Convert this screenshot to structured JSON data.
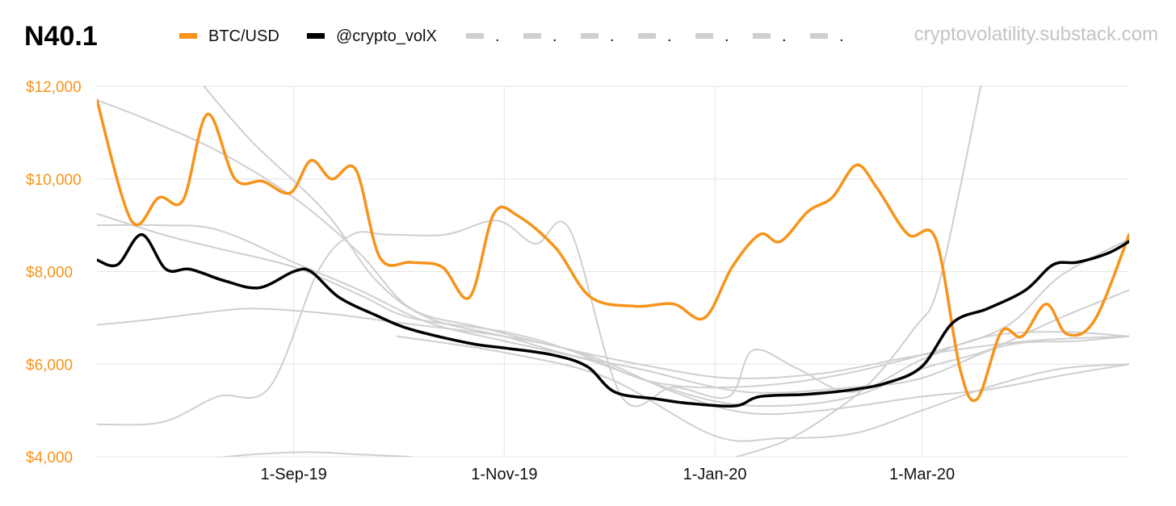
{
  "chart_data": {
    "type": "line",
    "title": "N40.1",
    "source": "cryptovolatility.substack.com",
    "ylim": [
      4000,
      12000
    ],
    "x_range": [
      "2019-07-06",
      "2020-04-30"
    ],
    "y_ticks": [
      {
        "value": 4000,
        "label": "$4,000"
      },
      {
        "value": 6000,
        "label": "$6,000"
      },
      {
        "value": 8000,
        "label": "$8,000"
      },
      {
        "value": 10000,
        "label": "$10,000"
      },
      {
        "value": 12000,
        "label": "$12,000"
      }
    ],
    "x_ticks": [
      {
        "date": "2019-09-01",
        "label": "1-Sep-19"
      },
      {
        "date": "2019-11-01",
        "label": "1-Nov-19"
      },
      {
        "date": "2020-01-01",
        "label": "1-Jan-20"
      },
      {
        "date": "2020-03-01",
        "label": "1-Mar-20"
      }
    ],
    "grid": true,
    "legend_position": "top",
    "colors": {
      "btc": "#f7931a",
      "volx": "#000000",
      "other": "#cfcfcf",
      "grid": "#e6e6e6"
    },
    "legend": [
      {
        "label": "BTC/USD",
        "color": "#f7931a"
      },
      {
        "label": "@crypto_volX",
        "color": "#000000"
      },
      {
        "label": ".",
        "color": "#cfcfcf"
      },
      {
        "label": ".",
        "color": "#cfcfcf"
      },
      {
        "label": ".",
        "color": "#cfcfcf"
      },
      {
        "label": ".",
        "color": "#cfcfcf"
      },
      {
        "label": ".",
        "color": "#cfcfcf"
      },
      {
        "label": ".",
        "color": "#cfcfcf"
      },
      {
        "label": ".",
        "color": "#cfcfcf"
      }
    ],
    "series": [
      {
        "name": "BTC/USD",
        "color": "#f7931a",
        "width": 3.5,
        "points": [
          [
            "2019-07-06",
            11700
          ],
          [
            "2019-07-16",
            9100
          ],
          [
            "2019-07-24",
            9600
          ],
          [
            "2019-07-31",
            9550
          ],
          [
            "2019-08-07",
            11400
          ],
          [
            "2019-08-15",
            10000
          ],
          [
            "2019-08-23",
            9950
          ],
          [
            "2019-08-31",
            9700
          ],
          [
            "2019-09-06",
            10400
          ],
          [
            "2019-09-12",
            10000
          ],
          [
            "2019-09-19",
            10200
          ],
          [
            "2019-09-26",
            8300
          ],
          [
            "2019-10-05",
            8200
          ],
          [
            "2019-10-14",
            8100
          ],
          [
            "2019-10-22",
            7450
          ],
          [
            "2019-10-29",
            9250
          ],
          [
            "2019-11-05",
            9200
          ],
          [
            "2019-11-16",
            8500
          ],
          [
            "2019-11-26",
            7450
          ],
          [
            "2019-12-09",
            7250
          ],
          [
            "2019-12-20",
            7300
          ],
          [
            "2019-12-29",
            7000
          ],
          [
            "2020-01-06",
            8100
          ],
          [
            "2020-01-14",
            8800
          ],
          [
            "2020-01-20",
            8650
          ],
          [
            "2020-01-28",
            9300
          ],
          [
            "2020-02-04",
            9600
          ],
          [
            "2020-02-11",
            10300
          ],
          [
            "2020-02-17",
            9800
          ],
          [
            "2020-02-26",
            8800
          ],
          [
            "2020-03-05",
            8700
          ],
          [
            "2020-03-12",
            5900
          ],
          [
            "2020-03-17",
            5250
          ],
          [
            "2020-03-24",
            6700
          ],
          [
            "2020-03-30",
            6600
          ],
          [
            "2020-04-06",
            7300
          ],
          [
            "2020-04-12",
            6650
          ],
          [
            "2020-04-20",
            6950
          ],
          [
            "2020-04-30",
            8800
          ]
        ]
      },
      {
        "name": "@crypto_volX",
        "color": "#000000",
        "width": 3.5,
        "points": [
          [
            "2019-07-06",
            8250
          ],
          [
            "2019-07-12",
            8150
          ],
          [
            "2019-07-19",
            8800
          ],
          [
            "2019-07-26",
            8050
          ],
          [
            "2019-08-02",
            8050
          ],
          [
            "2019-08-12",
            7800
          ],
          [
            "2019-08-22",
            7650
          ],
          [
            "2019-09-01",
            8000
          ],
          [
            "2019-09-06",
            8000
          ],
          [
            "2019-09-14",
            7450
          ],
          [
            "2019-09-25",
            7050
          ],
          [
            "2019-10-05",
            6750
          ],
          [
            "2019-10-22",
            6450
          ],
          [
            "2019-11-01",
            6350
          ],
          [
            "2019-11-15",
            6200
          ],
          [
            "2019-11-25",
            5950
          ],
          [
            "2019-12-03",
            5400
          ],
          [
            "2019-12-15",
            5250
          ],
          [
            "2019-12-25",
            5150
          ],
          [
            "2020-01-07",
            5100
          ],
          [
            "2020-01-14",
            5300
          ],
          [
            "2020-01-28",
            5350
          ],
          [
            "2020-02-10",
            5450
          ],
          [
            "2020-02-20",
            5600
          ],
          [
            "2020-03-01",
            5950
          ],
          [
            "2020-03-10",
            6900
          ],
          [
            "2020-03-20",
            7200
          ],
          [
            "2020-03-31",
            7600
          ],
          [
            "2020-04-08",
            8150
          ],
          [
            "2020-04-15",
            8200
          ],
          [
            "2020-04-24",
            8400
          ],
          [
            "2020-04-30",
            8650
          ]
        ]
      },
      {
        "color": "#cfcfcf",
        "width": 2,
        "points": [
          [
            "2019-07-06",
            11700
          ],
          [
            "2019-07-20",
            11300
          ],
          [
            "2019-08-10",
            10600
          ],
          [
            "2019-09-01",
            9600
          ],
          [
            "2019-09-20",
            8400
          ],
          [
            "2019-10-05",
            7200
          ],
          [
            "2019-10-25",
            6800
          ],
          [
            "2019-11-15",
            6400
          ],
          [
            "2019-12-10",
            6000
          ],
          [
            "2020-01-05",
            5700
          ],
          [
            "2020-02-01",
            5800
          ],
          [
            "2020-03-01",
            6200
          ],
          [
            "2020-04-01",
            6500
          ],
          [
            "2020-04-30",
            6600
          ]
        ]
      },
      {
        "color": "#cfcfcf",
        "width": 2,
        "points": [
          [
            "2019-08-06",
            12000
          ],
          [
            "2019-08-20",
            10800
          ],
          [
            "2019-09-10",
            9300
          ],
          [
            "2019-09-25",
            7800
          ],
          [
            "2019-10-10",
            7000
          ],
          [
            "2019-11-01",
            6600
          ],
          [
            "2019-11-20",
            6200
          ],
          [
            "2019-12-10",
            5900
          ],
          [
            "2020-01-10",
            5400
          ],
          [
            "2020-02-10",
            5500
          ],
          [
            "2020-03-01",
            5700
          ],
          [
            "2020-03-25",
            6400
          ],
          [
            "2020-04-15",
            6500
          ],
          [
            "2020-04-30",
            6600
          ]
        ]
      },
      {
        "color": "#cfcfcf",
        "width": 2,
        "points": [
          [
            "2019-07-06",
            9250
          ],
          [
            "2019-07-25",
            8800
          ],
          [
            "2019-08-10",
            8500
          ],
          [
            "2019-09-01",
            8100
          ],
          [
            "2019-09-20",
            7500
          ],
          [
            "2019-10-05",
            7000
          ],
          [
            "2019-11-01",
            6700
          ],
          [
            "2019-11-20",
            6300
          ],
          [
            "2019-12-10",
            5700
          ],
          [
            "2020-01-01",
            5200
          ],
          [
            "2020-01-20",
            5100
          ],
          [
            "2020-02-10",
            5300
          ],
          [
            "2020-03-01",
            5900
          ],
          [
            "2020-03-20",
            6300
          ],
          [
            "2020-04-10",
            7000
          ],
          [
            "2020-04-30",
            7600
          ]
        ]
      },
      {
        "color": "#cfcfcf",
        "width": 2,
        "points": [
          [
            "2019-07-06",
            9000
          ],
          [
            "2019-07-25",
            9000
          ],
          [
            "2019-08-10",
            8900
          ],
          [
            "2019-09-01",
            8200
          ],
          [
            "2019-09-20",
            7600
          ],
          [
            "2019-10-10",
            6900
          ],
          [
            "2019-11-01",
            6500
          ],
          [
            "2019-11-25",
            6100
          ],
          [
            "2019-12-15",
            5600
          ],
          [
            "2020-01-05",
            5500
          ],
          [
            "2020-02-01",
            5700
          ],
          [
            "2020-03-01",
            6200
          ],
          [
            "2020-03-25",
            6800
          ],
          [
            "2020-04-10",
            7900
          ],
          [
            "2020-04-30",
            8700
          ]
        ]
      },
      {
        "color": "#cfcfcf",
        "width": 2,
        "points": [
          [
            "2019-07-06",
            6850
          ],
          [
            "2019-07-20",
            6950
          ],
          [
            "2019-08-05",
            7100
          ],
          [
            "2019-08-20",
            7200
          ],
          [
            "2019-09-10",
            7100
          ],
          [
            "2019-10-01",
            6900
          ],
          [
            "2019-11-01",
            6600
          ],
          [
            "2019-11-25",
            6200
          ],
          [
            "2019-12-20",
            5400
          ],
          [
            "2020-01-10",
            4950
          ],
          [
            "2020-02-01",
            5000
          ],
          [
            "2020-03-01",
            5300
          ],
          [
            "2020-03-20",
            5450
          ],
          [
            "2020-04-10",
            5750
          ],
          [
            "2020-04-30",
            6000
          ]
        ]
      },
      {
        "color": "#cfcfcf",
        "width": 2,
        "points": [
          [
            "2019-07-06",
            4700
          ],
          [
            "2019-07-25",
            4750
          ],
          [
            "2019-08-10",
            5300
          ],
          [
            "2019-08-25",
            5500
          ],
          [
            "2019-09-08",
            8000
          ],
          [
            "2019-09-18",
            8800
          ],
          [
            "2019-09-28",
            8800
          ],
          [
            "2019-10-15",
            8800
          ],
          [
            "2019-10-30",
            9100
          ],
          [
            "2019-11-10",
            8600
          ],
          [
            "2019-11-20",
            8900
          ],
          [
            "2019-12-05",
            5300
          ],
          [
            "2019-12-20",
            5500
          ],
          [
            "2020-01-05",
            5300
          ],
          [
            "2020-01-12",
            6300
          ],
          [
            "2020-01-25",
            5900
          ],
          [
            "2020-02-10",
            5400
          ],
          [
            "2020-03-01",
            6100
          ],
          [
            "2020-03-20",
            6600
          ],
          [
            "2020-04-10",
            6700
          ],
          [
            "2020-04-30",
            6600
          ]
        ]
      },
      {
        "color": "#cfcfcf",
        "width": 2,
        "points": [
          [
            "2019-08-06",
            3950
          ],
          [
            "2019-08-20",
            4050
          ],
          [
            "2019-09-05",
            4100
          ],
          [
            "2019-09-20",
            4050
          ],
          [
            "2019-10-05",
            4000
          ]
        ]
      },
      {
        "color": "#cfcfcf",
        "width": 2,
        "points": [
          [
            "2020-01-05",
            3950
          ],
          [
            "2020-01-20",
            4300
          ],
          [
            "2020-02-01",
            4800
          ],
          [
            "2020-02-15",
            5600
          ],
          [
            "2020-02-28",
            6800
          ],
          [
            "2020-03-05",
            7500
          ],
          [
            "2020-03-12",
            9800
          ],
          [
            "2020-03-18",
            12000
          ]
        ]
      },
      {
        "color": "#cfcfcf",
        "width": 2,
        "points": [
          [
            "2019-10-01",
            6600
          ],
          [
            "2019-11-01",
            6250
          ],
          [
            "2019-12-01",
            5700
          ],
          [
            "2020-01-01",
            4450
          ],
          [
            "2020-01-20",
            4400
          ],
          [
            "2020-02-10",
            4500
          ],
          [
            "2020-03-01",
            5000
          ],
          [
            "2020-03-20",
            5500
          ],
          [
            "2020-04-10",
            5900
          ],
          [
            "2020-04-30",
            6000
          ]
        ]
      }
    ]
  }
}
